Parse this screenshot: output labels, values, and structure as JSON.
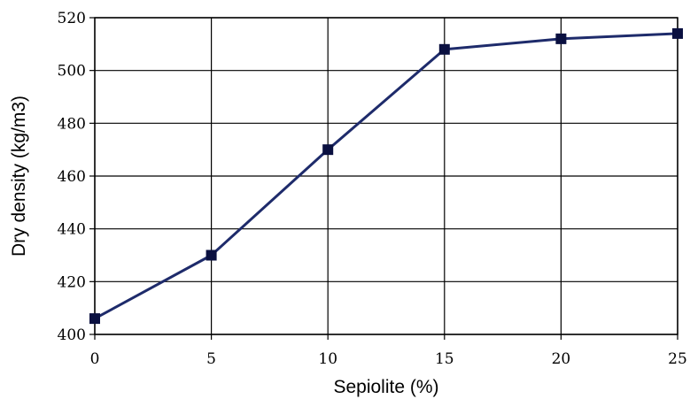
{
  "chart_data": {
    "type": "line",
    "title": "",
    "xlabel": "Sepiolite (%)",
    "ylabel": "Dry density (kg/m3)",
    "x": [
      0,
      5,
      10,
      15,
      20,
      25
    ],
    "series": [
      {
        "values": [
          406,
          430,
          470,
          508,
          512,
          514
        ]
      }
    ],
    "xlim": [
      0,
      25
    ],
    "ylim": [
      400,
      520
    ],
    "xticks": [
      0,
      5,
      10,
      15,
      20,
      25
    ],
    "yticks": [
      400,
      420,
      440,
      460,
      480,
      500,
      520
    ],
    "grid": true,
    "legend": "none",
    "line_color": "#1e2b6b",
    "marker_color": "#0a1040",
    "marker": "square"
  }
}
